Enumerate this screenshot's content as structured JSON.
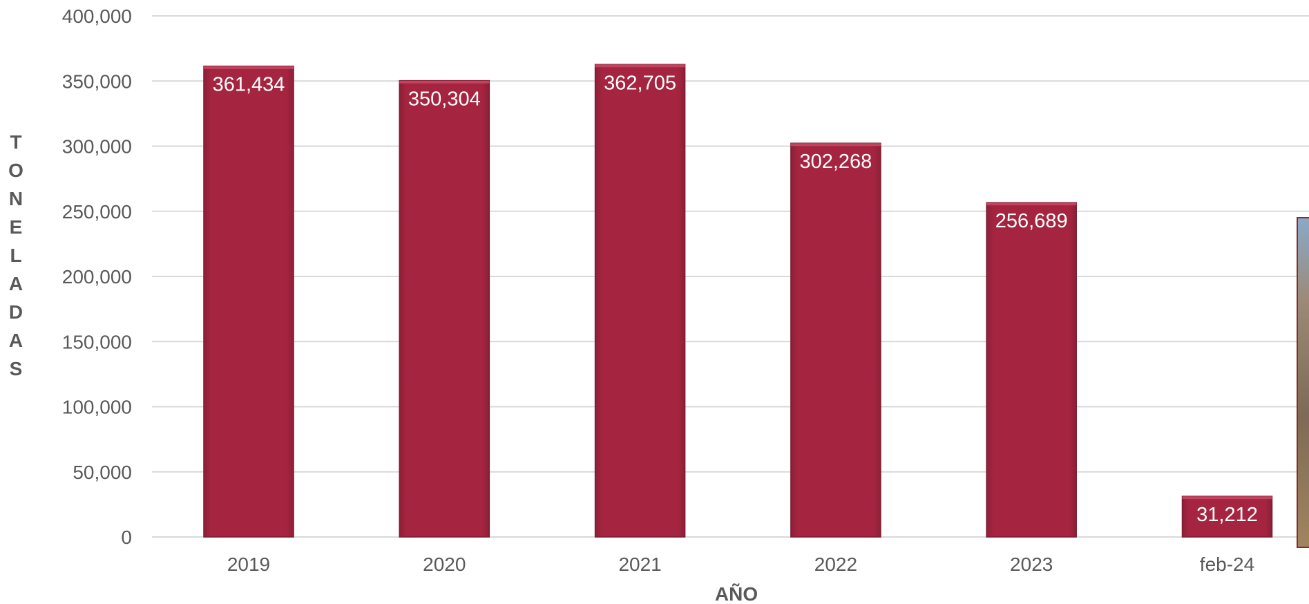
{
  "chart_data": {
    "type": "bar",
    "categories": [
      "2019",
      "2020",
      "2021",
      "2022",
      "2023",
      "feb-24"
    ],
    "values": [
      361434,
      350304,
      362705,
      302268,
      256689,
      31212
    ],
    "data_labels": [
      "361,434",
      "350,304",
      "362,705",
      "302,268",
      "256,689",
      "31,212"
    ],
    "yticks": [
      "0",
      "50,000",
      "100,000",
      "150,000",
      "200,000",
      "250,000",
      "300,000",
      "350,000",
      "400,000"
    ],
    "ytick_values": [
      0,
      50000,
      100000,
      150000,
      200000,
      250000,
      300000,
      350000,
      400000
    ],
    "ylim": [
      0,
      400000
    ],
    "xlabel": "AÑO",
    "ylabel": "TONELADAS",
    "grid": true,
    "bar_color": "#a52540",
    "bar_edge_color": "#7a1a2e",
    "grid_color": "#d9d9d9"
  }
}
